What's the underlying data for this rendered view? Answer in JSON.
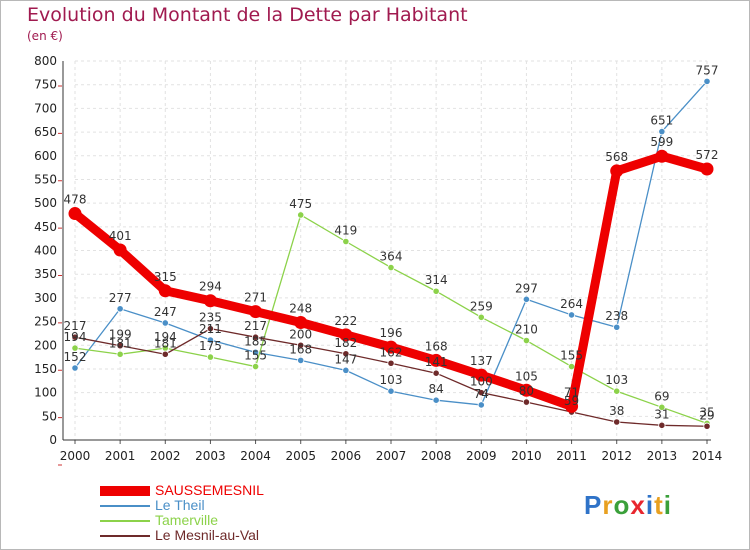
{
  "chart_data": {
    "type": "line",
    "title": "Evolution du Montant de la Dette par Habitant",
    "unit": "(en €)",
    "xlabel": "",
    "ylabel": "",
    "x": [
      "2000",
      "2001",
      "2002",
      "2003",
      "2004",
      "2005",
      "2006",
      "2007",
      "2008",
      "2009",
      "2010",
      "2011",
      "2012",
      "2013",
      "2014"
    ],
    "ylim": [
      0,
      800
    ],
    "yticks": [
      0,
      50,
      100,
      150,
      200,
      250,
      300,
      350,
      400,
      450,
      500,
      550,
      600,
      650,
      700,
      750,
      800
    ],
    "grid": true,
    "legend_position": "bottom-left",
    "series": [
      {
        "name": "SAUSSEMESNIL",
        "color": "#ee0000",
        "values": [
          478,
          401,
          315,
          294,
          271,
          248,
          222,
          196,
          168,
          137,
          105,
          71,
          568,
          599,
          572
        ]
      },
      {
        "name": "Le Theil",
        "color": "#4a8fc7",
        "values": [
          152,
          277,
          247,
          211,
          185,
          168,
          147,
          103,
          84,
          74,
          297,
          264,
          238,
          651,
          757
        ]
      },
      {
        "name": "Tamerville",
        "color": "#8cd24a",
        "values": [
          194,
          181,
          194,
          175,
          155,
          475,
          419,
          364,
          314,
          259,
          210,
          155,
          103,
          69,
          35
        ]
      },
      {
        "name": "Le Mesnil-au-Val",
        "color": "#6e2a2a",
        "values": [
          217,
          199,
          181,
          235,
          217,
          200,
          182,
          162,
          141,
          100,
          80,
          59,
          38,
          31,
          29
        ]
      }
    ]
  },
  "logo": {
    "letters": [
      "P",
      "r",
      "o",
      "x",
      "i",
      "t",
      "i"
    ],
    "colors": [
      "#2f73c8",
      "#e8a020",
      "#3aa03a",
      "#e8262e",
      "#2f73c8",
      "#e8a020",
      "#3aa03a"
    ]
  }
}
